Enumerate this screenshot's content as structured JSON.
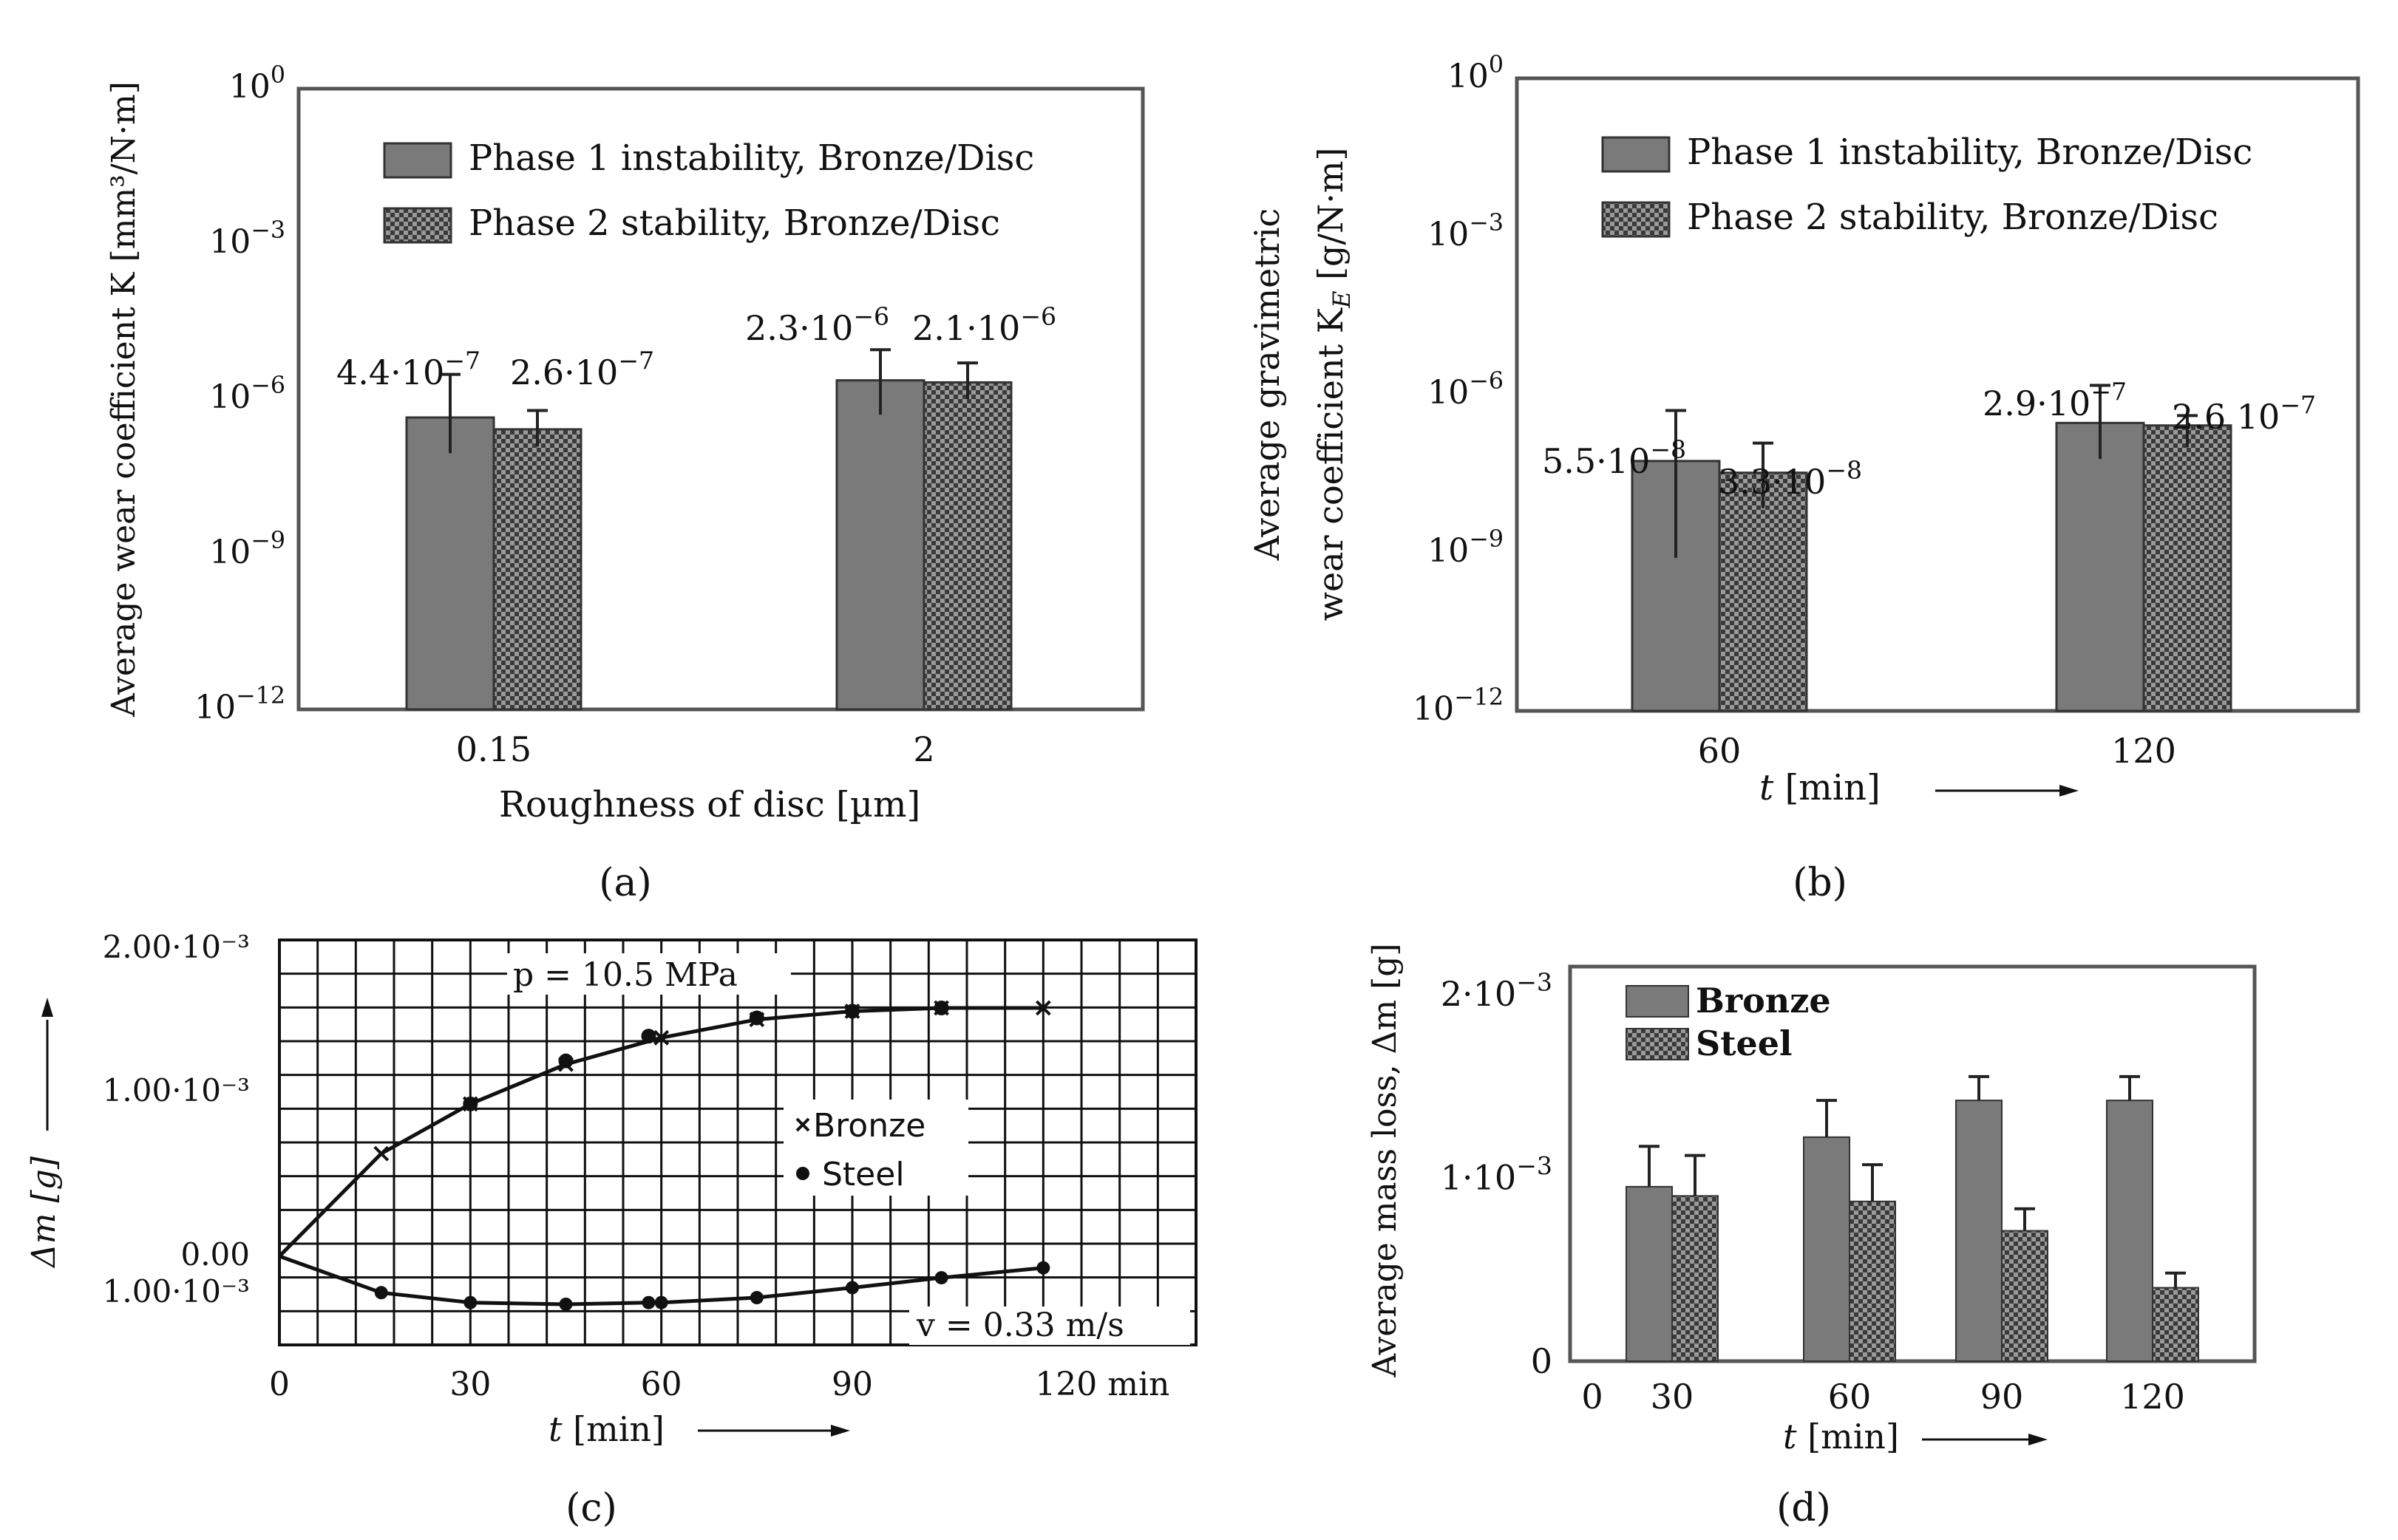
{
  "colors": {
    "bar_solid": "#7a7a7a",
    "bar_solid_stroke": "#333333",
    "bar_hatch_dark": "#3a3a3a",
    "bar_hatch_light": "#9a9a9a",
    "frame": "#555555",
    "frame_fill": "#ffffff",
    "grid": "#111111"
  },
  "chart_data": [
    {
      "panel": "(a)",
      "type": "bar",
      "log_scale": true,
      "ylim_exponent": [
        -12,
        0
      ],
      "ylabel": "Average wear coefficient K [mm³/N·m]",
      "xlabel": "Roughness of disc [µm]",
      "yticks": [
        {
          "base": "10",
          "exp": "0"
        },
        {
          "base": "10",
          "exp": "−3"
        },
        {
          "base": "10",
          "exp": "−6"
        },
        {
          "base": "10",
          "exp": "−9"
        },
        {
          "base": "10",
          "exp": "−12"
        }
      ],
      "categories": [
        "0.15",
        "2"
      ],
      "series": [
        {
          "name": "Phase 1 instability, Bronze/Disc",
          "values": [
            4.4e-07,
            2.3e-06
          ],
          "err_upper": [
            3e-06,
            9e-06
          ],
          "err_lower": [
            9e-08,
            5e-07
          ]
        },
        {
          "name": "Phase 2 stability, Bronze/Disc",
          "values": [
            2.6e-07,
            2.1e-06
          ],
          "err_upper": [
            6e-07,
            5e-06
          ],
          "err_lower": [
            1.2e-07,
            1e-06
          ]
        }
      ],
      "data_labels": [
        {
          "base": "4.4·10",
          "exp": "−7"
        },
        {
          "base": "2.6·10",
          "exp": "−7"
        },
        {
          "base": "2.3·10",
          "exp": "−6"
        },
        {
          "base": "2.1·10",
          "exp": "−6"
        }
      ],
      "legend_position": "top"
    },
    {
      "panel": "(b)",
      "type": "bar",
      "log_scale": true,
      "ylim_exponent": [
        -12,
        0
      ],
      "ylabel_line1": "Average gravimetric",
      "ylabel_line2": "wear coefficient K",
      "ylabel_sub": "E",
      "ylabel_unit": " [g/N·m]",
      "xlabel_var": "t",
      "xlabel_unit": " [min]",
      "yticks": [
        {
          "base": "10",
          "exp": "0"
        },
        {
          "base": "10",
          "exp": "−3"
        },
        {
          "base": "10",
          "exp": "−6"
        },
        {
          "base": "10",
          "exp": "−9"
        },
        {
          "base": "10",
          "exp": "−12"
        }
      ],
      "categories": [
        "60",
        "120"
      ],
      "series": [
        {
          "name": "Phase 1 instability, Bronze/Disc",
          "values": [
            5.5e-08,
            2.9e-07
          ],
          "err_upper": [
            5e-07,
            1.5e-06
          ],
          "err_lower": [
            8e-10,
            6e-08
          ]
        },
        {
          "name": "Phase 2 stability, Bronze/Disc",
          "values": [
            3.3e-08,
            2.6e-07
          ],
          "err_upper": [
            1.2e-07,
            4e-07
          ],
          "err_lower": [
            7e-09,
            1e-07
          ]
        }
      ],
      "data_labels": [
        {
          "base": "5.5·10",
          "exp": "−8"
        },
        {
          "base": "3.3·10",
          "exp": "−8"
        },
        {
          "base": "2.9·10",
          "exp": "−7"
        },
        {
          "base": "2.6  10",
          "exp": "−7"
        }
      ],
      "legend_position": "top"
    },
    {
      "panel": "(c)",
      "type": "line",
      "xlim": [
        0,
        120
      ],
      "ylim": [
        -0.0015,
        0.002
      ],
      "xticks": [
        "0",
        "30",
        "60",
        "90",
        "120 min"
      ],
      "ytick_labels": [
        "2.00·10⁻³",
        "1.00·10⁻³",
        "0.00",
        "1.00·10⁻³"
      ],
      "ylabel": "Δm [g]",
      "xlabel_var": "t",
      "xlabel_unit": " [min]",
      "annotations": [
        "p = 10.5 MPa",
        "v = 0.33 m/s"
      ],
      "series": [
        {
          "name": "Bronze",
          "marker": "x",
          "x": [
            0,
            16,
            30,
            45,
            60,
            75,
            90,
            104,
            120
          ],
          "y": [
            0,
            0.00062,
            0.00092,
            0.00116,
            0.00132,
            0.00143,
            0.00148,
            0.0015,
            0.0015
          ]
        },
        {
          "name": "Steel",
          "marker": "dot",
          "x": [
            0,
            16,
            30,
            45,
            58,
            60,
            75,
            90,
            104,
            120
          ],
          "y": [
            0,
            -0.00022,
            -0.00028,
            -0.00029,
            -0.00028,
            -0.00028,
            -0.00025,
            -0.00019,
            -0.00013,
            -7e-05
          ]
        },
        {
          "name": "Bronze/Steel (upper markers)",
          "marker": "dot",
          "legend": false,
          "x": [
            30,
            45,
            58,
            75,
            90,
            104
          ],
          "y": [
            0.00092,
            0.00118,
            0.00133,
            0.00144,
            0.00148,
            0.0015
          ]
        }
      ]
    },
    {
      "panel": "(d)",
      "type": "bar",
      "ylim": [
        0,
        0.0023
      ],
      "ylabel": "Average mass loss, Δm [g]",
      "xlabel_var": "t",
      "xlabel_unit": " [min]",
      "yticks": [
        {
          "base": "0",
          "exp": ""
        },
        {
          "base": "1·10",
          "exp": "−3"
        },
        {
          "base": "2·10",
          "exp": "−3"
        }
      ],
      "x_zero_label": "0",
      "categories": [
        "30",
        "60",
        "90",
        "120"
      ],
      "series": [
        {
          "name": "Bronze",
          "values": [
            0.00095,
            0.00122,
            0.00142,
            0.00142
          ],
          "err": [
            0.00022,
            0.0002,
            0.00013,
            0.00013
          ]
        },
        {
          "name": "Steel",
          "values": [
            0.0009,
            0.00087,
            0.00071,
            0.0004
          ],
          "err": [
            0.00022,
            0.0002,
            0.00012,
            8e-05
          ]
        }
      ],
      "legend_position": "top-left"
    }
  ],
  "panel_labels": {
    "a": "(a)",
    "b": "(b)",
    "c": "(c)",
    "d": "(d)"
  }
}
